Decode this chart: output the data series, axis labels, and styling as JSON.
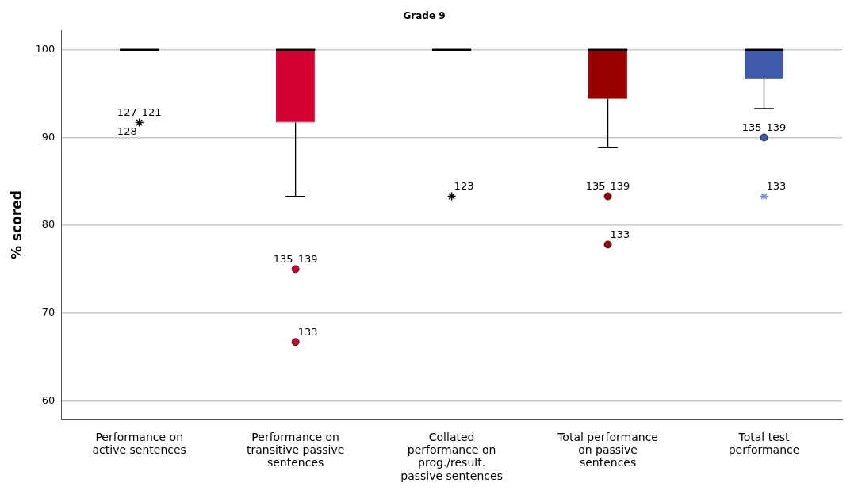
{
  "chart_data": {
    "type": "box",
    "title": "Grade 9",
    "ylabel": "% scored",
    "categories": [
      "Performance on active sentences",
      "Performance on transitive passive sentences",
      "Collated performance on prog./result. passive sentences",
      "Total performance on passive sentences",
      "Total test performance"
    ],
    "series": [
      {
        "type": "box",
        "colors": [
          "#000000",
          "#d50032",
          "#000000",
          "#990000",
          "#3d5ba9"
        ],
        "boxes": [
          {
            "low": 100,
            "q1": 100,
            "median": 100,
            "q3": 100,
            "high": 100
          },
          {
            "low": 83.3,
            "q1": 91.7,
            "median": 100,
            "q3": 100,
            "high": 100
          },
          {
            "low": 100,
            "q1": 100,
            "median": 100,
            "q3": 100,
            "high": 100
          },
          {
            "low": 88.9,
            "q1": 94.4,
            "median": 100,
            "q3": 100,
            "high": 100
          },
          {
            "low": 93.3,
            "q1": 96.7,
            "median": 100,
            "q3": 100,
            "high": 100
          }
        ]
      },
      {
        "type": "scatter",
        "marker": "circle",
        "x": [
          "Performance on transitive passive sentences",
          "Performance on transitive passive sentences",
          "Total performance on passive sentences",
          "Total performance on passive sentences",
          "Total test performance"
        ],
        "values": [
          75,
          66.7,
          83.3,
          77.8,
          90
        ],
        "colors": [
          "#d50032",
          "#d50032",
          "#990000",
          "#990000",
          "#3d5ba9"
        ]
      },
      {
        "type": "scatter",
        "marker": "cross",
        "x": [
          "Performance on active sentences",
          "Collated performance on prog./result. passive sentences",
          "Total test performance"
        ],
        "values": [
          91.7,
          83.3,
          83.3
        ],
        "colors": [
          "#000000",
          "#000000",
          "#6f8ccc"
        ]
      }
    ],
    "ylim": [
      57.9,
      102.2
    ],
    "yticks": [
      60,
      70,
      80,
      90,
      100
    ],
    "grid": "y",
    "legend": false,
    "annotations": [
      {
        "text": "121",
        "x": "Performance on active sentences",
        "y": 91.7
      },
      {
        "text": "127",
        "x": "Performance on active sentences",
        "y": 91.7
      },
      {
        "text": "128",
        "x": "Performance on active sentences",
        "y": 91.7
      },
      {
        "text": "139",
        "x": "Performance on transitive passive sentences",
        "y": 75
      },
      {
        "text": "135",
        "x": "Performance on transitive passive sentences",
        "y": 75
      },
      {
        "text": "133",
        "x": "Performance on transitive passive sentences",
        "y": 66.7
      },
      {
        "text": "123",
        "x": "Collated performance on prog./result. passive sentences",
        "y": 83.3
      },
      {
        "text": "139",
        "x": "Total performance on passive sentences",
        "y": 83.3
      },
      {
        "text": "135",
        "x": "Total performance on passive sentences",
        "y": 83.3
      },
      {
        "text": "133",
        "x": "Total performance on passive sentences",
        "y": 77.8
      },
      {
        "text": "139",
        "x": "Total test performance",
        "y": 90
      },
      {
        "text": "135",
        "x": "Total test performance",
        "y": 90
      },
      {
        "text": "133",
        "x": "Total test performance",
        "y": 83.3
      }
    ]
  }
}
